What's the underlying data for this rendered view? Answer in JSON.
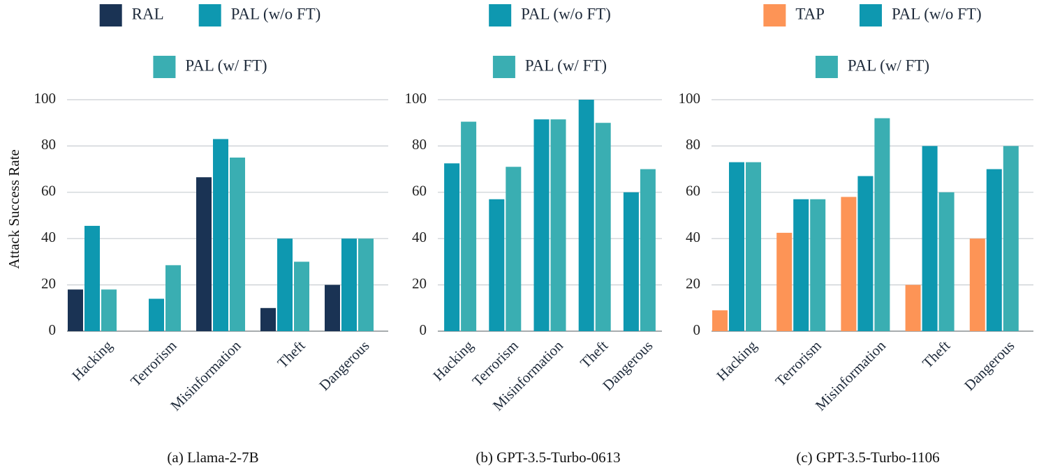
{
  "colors": {
    "RAL": "#1a3354",
    "PAL (w/o FT)": "#0e98b0",
    "PAL (w/ FT)": "#3aaeb2",
    "TAP": "#fd9456",
    "grid": "#c9cdd2",
    "axis": "#8a8f94"
  },
  "ylabel": "Attack Success Rate",
  "chart_data": [
    {
      "type": "bar",
      "caption": "(a) Llama-2-7B",
      "categories": [
        "Hacking",
        "Terrorism",
        "Misinformation",
        "Theft",
        "Dangerous"
      ],
      "series": [
        {
          "name": "RAL",
          "values": [
            18,
            0,
            66.5,
            10,
            20
          ]
        },
        {
          "name": "PAL (w/o FT)",
          "values": [
            45.5,
            14,
            83,
            40,
            40
          ]
        },
        {
          "name": "PAL (w/ FT)",
          "values": [
            18,
            28.5,
            75,
            30,
            40
          ]
        }
      ],
      "legend_rows": [
        [
          "RAL",
          "PAL (w/o FT)"
        ],
        [
          "PAL (w/ FT)"
        ]
      ],
      "ylabel": "Attack Success Rate",
      "ylim": [
        0,
        100
      ],
      "yticks": [
        0,
        20,
        40,
        60,
        80,
        100
      ],
      "grid": true,
      "legend": "top-center"
    },
    {
      "type": "bar",
      "caption": "(b) GPT-3.5-Turbo-0613",
      "categories": [
        "Hacking",
        "Terrorism",
        "Misinformation",
        "Theft",
        "Dangerous"
      ],
      "series": [
        {
          "name": "PAL (w/o FT)",
          "values": [
            72.5,
            57,
            91.5,
            100,
            60
          ]
        },
        {
          "name": "PAL (w/ FT)",
          "values": [
            90.5,
            71,
            91.5,
            90,
            70
          ]
        }
      ],
      "legend_rows": [
        [
          "PAL (w/o FT)"
        ],
        [
          "PAL (w/ FT)"
        ]
      ],
      "ylim": [
        0,
        100
      ],
      "yticks": [
        0,
        20,
        40,
        60,
        80,
        100
      ],
      "grid": true,
      "legend": "top-center"
    },
    {
      "type": "bar",
      "caption": "(c) GPT-3.5-Turbo-1106",
      "categories": [
        "Hacking",
        "Terrorism",
        "Misinformation",
        "Theft",
        "Dangerous"
      ],
      "series": [
        {
          "name": "TAP",
          "values": [
            9,
            42.5,
            58,
            20,
            40
          ]
        },
        {
          "name": "PAL (w/o FT)",
          "values": [
            73,
            57,
            67,
            80,
            70
          ]
        },
        {
          "name": "PAL (w/ FT)",
          "values": [
            73,
            57,
            92,
            60,
            80
          ]
        }
      ],
      "legend_rows": [
        [
          "TAP",
          "PAL (w/o FT)"
        ],
        [
          "PAL (w/ FT)"
        ]
      ],
      "ylim": [
        0,
        100
      ],
      "yticks": [
        0,
        20,
        40,
        60,
        80,
        100
      ],
      "grid": true,
      "legend": "top-center"
    }
  ]
}
